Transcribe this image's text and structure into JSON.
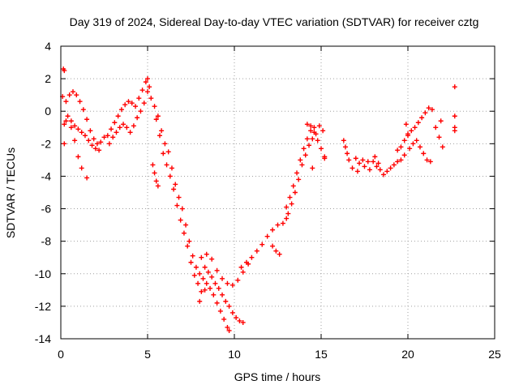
{
  "chart_data": {
    "type": "scatter",
    "title": "Day 319 of 2024, Sidereal Day-to-day VTEC variation (SDTVAR) for receiver cztg",
    "xlabel": "GPS time / hours",
    "ylabel": "SDTVAR / TECUs",
    "xlim": [
      0,
      25
    ],
    "ylim": [
      -14,
      4
    ],
    "xticks": [
      0,
      5,
      10,
      15,
      20,
      25
    ],
    "yticks": [
      -14,
      -12,
      -10,
      -8,
      -6,
      -4,
      -2,
      0,
      2,
      4
    ],
    "grid": true,
    "marker": "plus",
    "color": "#ff0000",
    "series": [
      {
        "name": "cztg",
        "points": [
          [
            0.15,
            2.6
          ],
          [
            0.2,
            2.5
          ],
          [
            0.2,
            -2.0
          ],
          [
            0.2,
            -0.8
          ],
          [
            0.3,
            -0.6
          ],
          [
            0.1,
            0.9
          ],
          [
            0.3,
            0.6
          ],
          [
            0.5,
            1.0
          ],
          [
            0.7,
            1.2
          ],
          [
            0.9,
            1.0
          ],
          [
            1.1,
            0.6
          ],
          [
            1.3,
            0.1
          ],
          [
            1.5,
            -0.5
          ],
          [
            1.7,
            -1.2
          ],
          [
            1.9,
            -1.7
          ],
          [
            2.1,
            -2.0
          ],
          [
            2.3,
            -1.9
          ],
          [
            2.5,
            -1.6
          ],
          [
            0.4,
            -0.3
          ],
          [
            0.6,
            -0.6
          ],
          [
            0.8,
            -0.9
          ],
          [
            1.0,
            -1.1
          ],
          [
            1.2,
            -1.3
          ],
          [
            1.4,
            -1.5
          ],
          [
            1.6,
            -1.8
          ],
          [
            1.8,
            -2.1
          ],
          [
            2.0,
            -2.3
          ],
          [
            2.2,
            -2.4
          ],
          [
            0.6,
            -1.0
          ],
          [
            0.8,
            -1.8
          ],
          [
            1.0,
            -2.8
          ],
          [
            1.2,
            -3.5
          ],
          [
            1.5,
            -4.1
          ],
          [
            2.7,
            -1.5
          ],
          [
            2.9,
            -1.1
          ],
          [
            3.1,
            -0.7
          ],
          [
            3.3,
            -0.3
          ],
          [
            3.5,
            0.1
          ],
          [
            3.7,
            0.4
          ],
          [
            3.9,
            0.6
          ],
          [
            4.1,
            0.5
          ],
          [
            4.3,
            0.3
          ],
          [
            4.5,
            0.8
          ],
          [
            4.7,
            1.3
          ],
          [
            4.9,
            1.8
          ],
          [
            5.0,
            2.0
          ],
          [
            5.1,
            1.5
          ],
          [
            2.8,
            -2.0
          ],
          [
            3.0,
            -1.6
          ],
          [
            3.2,
            -1.3
          ],
          [
            3.4,
            -1.0
          ],
          [
            3.6,
            -0.8
          ],
          [
            3.8,
            -1.0
          ],
          [
            4.0,
            -1.3
          ],
          [
            4.2,
            -0.9
          ],
          [
            4.4,
            -0.4
          ],
          [
            4.6,
            0.0
          ],
          [
            4.8,
            0.5
          ],
          [
            5.0,
            1.2
          ],
          [
            5.2,
            0.8
          ],
          [
            5.4,
            0.3
          ],
          [
            5.6,
            -0.3
          ],
          [
            5.8,
            -1.2
          ],
          [
            6.0,
            -2.0
          ],
          [
            6.2,
            -2.5
          ],
          [
            6.4,
            -3.5
          ],
          [
            6.6,
            -4.5
          ],
          [
            6.8,
            -5.3
          ],
          [
            7.0,
            -6.0
          ],
          [
            7.2,
            -7.0
          ],
          [
            7.4,
            -8.0
          ],
          [
            7.6,
            -8.9
          ],
          [
            7.8,
            -9.6
          ],
          [
            8.0,
            -10.0
          ],
          [
            5.5,
            -0.5
          ],
          [
            5.7,
            -1.5
          ],
          [
            5.9,
            -2.6
          ],
          [
            6.1,
            -3.3
          ],
          [
            6.3,
            -4.0
          ],
          [
            6.5,
            -4.8
          ],
          [
            6.7,
            -5.8
          ],
          [
            6.9,
            -6.7
          ],
          [
            7.1,
            -7.5
          ],
          [
            7.3,
            -8.3
          ],
          [
            7.5,
            -9.3
          ],
          [
            7.7,
            -10.1
          ],
          [
            7.9,
            -10.6
          ],
          [
            8.1,
            -11.1
          ],
          [
            5.3,
            -3.3
          ],
          [
            5.4,
            -3.8
          ],
          [
            5.5,
            -4.3
          ],
          [
            5.6,
            -4.6
          ],
          [
            8.2,
            -10.3
          ],
          [
            8.4,
            -10.6
          ],
          [
            8.6,
            -10.9
          ],
          [
            8.8,
            -11.3
          ],
          [
            9.0,
            -11.8
          ],
          [
            9.2,
            -12.3
          ],
          [
            9.4,
            -12.8
          ],
          [
            9.6,
            -13.3
          ],
          [
            9.7,
            -13.5
          ],
          [
            8.3,
            -9.6
          ],
          [
            8.5,
            -9.9
          ],
          [
            8.7,
            -10.2
          ],
          [
            8.9,
            -10.6
          ],
          [
            9.1,
            -10.9
          ],
          [
            9.3,
            -11.3
          ],
          [
            9.5,
            -11.7
          ],
          [
            9.7,
            -12.0
          ],
          [
            9.9,
            -12.4
          ],
          [
            10.1,
            -12.7
          ],
          [
            10.3,
            -12.9
          ],
          [
            10.5,
            -13.0
          ],
          [
            8.1,
            -9.0
          ],
          [
            8.4,
            -8.8
          ],
          [
            8.7,
            -9.1
          ],
          [
            9.0,
            -9.8
          ],
          [
            9.3,
            -10.3
          ],
          [
            9.6,
            -10.6
          ],
          [
            9.9,
            -10.7
          ],
          [
            10.2,
            -10.4
          ],
          [
            10.5,
            -9.9
          ],
          [
            10.8,
            -9.4
          ],
          [
            8.0,
            -11.7
          ],
          [
            8.3,
            -11.0
          ],
          [
            10.4,
            -9.6
          ],
          [
            10.7,
            -9.3
          ],
          [
            11.0,
            -9.0
          ],
          [
            11.3,
            -8.6
          ],
          [
            11.6,
            -8.2
          ],
          [
            11.9,
            -7.7
          ],
          [
            12.2,
            -7.3
          ],
          [
            12.5,
            -7.0
          ],
          [
            12.8,
            -6.9
          ],
          [
            13.0,
            -6.6
          ],
          [
            12.2,
            -8.3
          ],
          [
            12.4,
            -8.6
          ],
          [
            12.6,
            -8.8
          ],
          [
            13.0,
            -5.9
          ],
          [
            13.2,
            -5.3
          ],
          [
            13.4,
            -4.6
          ],
          [
            13.6,
            -3.8
          ],
          [
            13.8,
            -3.0
          ],
          [
            14.0,
            -2.3
          ],
          [
            14.2,
            -1.7
          ],
          [
            14.4,
            -1.2
          ],
          [
            14.6,
            -1.0
          ],
          [
            13.1,
            -6.3
          ],
          [
            13.3,
            -5.7
          ],
          [
            13.5,
            -5.0
          ],
          [
            13.7,
            -4.2
          ],
          [
            13.9,
            -3.3
          ],
          [
            14.1,
            -2.7
          ],
          [
            14.3,
            -2.1
          ],
          [
            14.5,
            -1.7
          ],
          [
            14.7,
            -1.4
          ],
          [
            14.2,
            -0.8
          ],
          [
            14.4,
            -0.9
          ],
          [
            14.6,
            -1.3
          ],
          [
            14.8,
            -1.8
          ],
          [
            15.0,
            -2.3
          ],
          [
            15.2,
            -2.8
          ],
          [
            14.5,
            -3.5
          ],
          [
            14.9,
            -0.9
          ],
          [
            15.1,
            -1.2
          ],
          [
            15.2,
            -2.9
          ],
          [
            16.3,
            -1.8
          ],
          [
            16.4,
            -2.2
          ],
          [
            16.5,
            -2.6
          ],
          [
            16.6,
            -3.0
          ],
          [
            16.8,
            -3.5
          ],
          [
            17.0,
            -2.9
          ],
          [
            17.2,
            -3.2
          ],
          [
            17.5,
            -3.4
          ],
          [
            17.8,
            -3.6
          ],
          [
            18.0,
            -3.1
          ],
          [
            18.2,
            -3.4
          ],
          [
            18.4,
            -3.6
          ],
          [
            18.6,
            -3.9
          ],
          [
            18.8,
            -3.7
          ],
          [
            17.1,
            -3.7
          ],
          [
            17.4,
            -3.0
          ],
          [
            17.7,
            -3.1
          ],
          [
            18.1,
            -2.8
          ],
          [
            18.3,
            -3.2
          ],
          [
            19.0,
            -3.5
          ],
          [
            19.2,
            -3.3
          ],
          [
            19.4,
            -3.1
          ],
          [
            19.6,
            -3.0
          ],
          [
            19.8,
            -2.7
          ],
          [
            19.4,
            -2.4
          ],
          [
            19.6,
            -2.2
          ],
          [
            19.8,
            -1.8
          ],
          [
            20.0,
            -1.4
          ],
          [
            19.9,
            -0.8
          ],
          [
            20.0,
            -1.5
          ],
          [
            20.2,
            -1.2
          ],
          [
            20.4,
            -1.0
          ],
          [
            20.6,
            -0.7
          ],
          [
            20.8,
            -0.4
          ],
          [
            21.0,
            -0.1
          ],
          [
            21.2,
            0.2
          ],
          [
            21.4,
            0.1
          ],
          [
            20.1,
            -2.3
          ],
          [
            20.3,
            -2.0
          ],
          [
            20.5,
            -1.8
          ],
          [
            20.7,
            -2.2
          ],
          [
            20.9,
            -2.6
          ],
          [
            21.1,
            -3.0
          ],
          [
            21.3,
            -3.1
          ],
          [
            21.6,
            -1.0
          ],
          [
            21.8,
            -1.6
          ],
          [
            22.0,
            -2.2
          ],
          [
            21.9,
            -0.6
          ],
          [
            22.7,
            1.5
          ],
          [
            22.7,
            -0.3
          ],
          [
            22.7,
            -1.0
          ],
          [
            22.7,
            -1.2
          ]
        ]
      }
    ]
  }
}
